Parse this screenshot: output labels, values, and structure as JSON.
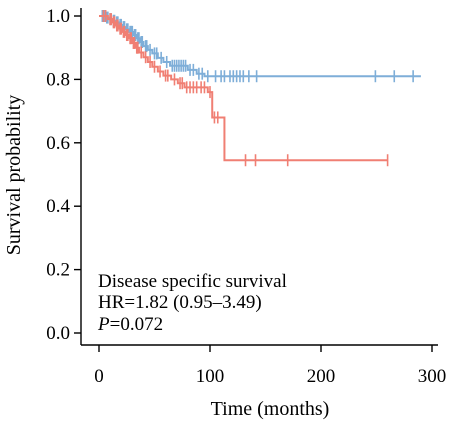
{
  "chart_data": {
    "type": "line",
    "title": "",
    "xlabel": "Time (months)",
    "ylabel": "Survival probability",
    "xlim": [
      0,
      300
    ],
    "ylim": [
      0,
      1
    ],
    "xticks": [
      0,
      100,
      200,
      300
    ],
    "xtick_labels": [
      "0",
      "100",
      "200",
      "300"
    ],
    "yticks": [
      0,
      0.2,
      0.4,
      0.6,
      0.8,
      1.0
    ],
    "ytick_labels": [
      "0.0",
      "0.2",
      "0.4",
      "0.6",
      "0.8",
      "1.0"
    ],
    "grid": false,
    "series": [
      {
        "color": "#7EAED8",
        "steps": [
          [
            0,
            1.0
          ],
          [
            6,
            0.995
          ],
          [
            9,
            0.99
          ],
          [
            12,
            0.985
          ],
          [
            15,
            0.98
          ],
          [
            18,
            0.972
          ],
          [
            21,
            0.965
          ],
          [
            24,
            0.958
          ],
          [
            27,
            0.95
          ],
          [
            31,
            0.94
          ],
          [
            34,
            0.93
          ],
          [
            37,
            0.918
          ],
          [
            40,
            0.905
          ],
          [
            44,
            0.893
          ],
          [
            48,
            0.882
          ],
          [
            53,
            0.868
          ],
          [
            58,
            0.855
          ],
          [
            64,
            0.843
          ],
          [
            80,
            0.83
          ],
          [
            88,
            0.818
          ],
          [
            95,
            0.81
          ],
          [
            290,
            0.81
          ]
        ],
        "censor": [
          [
            3,
            1.0
          ],
          [
            5,
            1.0
          ],
          [
            7,
            0.995
          ],
          [
            8,
            0.995
          ],
          [
            10,
            0.99
          ],
          [
            11,
            0.99
          ],
          [
            13,
            0.985
          ],
          [
            14,
            0.985
          ],
          [
            16,
            0.98
          ],
          [
            17,
            0.98
          ],
          [
            19,
            0.972
          ],
          [
            20,
            0.972
          ],
          [
            22,
            0.965
          ],
          [
            23,
            0.965
          ],
          [
            25,
            0.958
          ],
          [
            26,
            0.958
          ],
          [
            28,
            0.95
          ],
          [
            29,
            0.95
          ],
          [
            30,
            0.95
          ],
          [
            32,
            0.94
          ],
          [
            33,
            0.94
          ],
          [
            35,
            0.93
          ],
          [
            36,
            0.93
          ],
          [
            38,
            0.918
          ],
          [
            39,
            0.918
          ],
          [
            42,
            0.905
          ],
          [
            43,
            0.905
          ],
          [
            46,
            0.893
          ],
          [
            50,
            0.882
          ],
          [
            52,
            0.882
          ],
          [
            56,
            0.868
          ],
          [
            61,
            0.855
          ],
          [
            66,
            0.843
          ],
          [
            68,
            0.843
          ],
          [
            70,
            0.843
          ],
          [
            72,
            0.843
          ],
          [
            74,
            0.843
          ],
          [
            76,
            0.843
          ],
          [
            78,
            0.843
          ],
          [
            82,
            0.83
          ],
          [
            85,
            0.83
          ],
          [
            90,
            0.818
          ],
          [
            93,
            0.818
          ],
          [
            98,
            0.81
          ],
          [
            105,
            0.81
          ],
          [
            110,
            0.81
          ],
          [
            113,
            0.81
          ],
          [
            118,
            0.81
          ],
          [
            121,
            0.81
          ],
          [
            124,
            0.81
          ],
          [
            127,
            0.81
          ],
          [
            130,
            0.81
          ],
          [
            135,
            0.81
          ],
          [
            142,
            0.81
          ],
          [
            249,
            0.81
          ],
          [
            266,
            0.81
          ],
          [
            283,
            0.81
          ]
        ]
      },
      {
        "color": "#F07F73",
        "steps": [
          [
            0,
            1.0
          ],
          [
            8,
            0.99
          ],
          [
            12,
            0.98
          ],
          [
            15,
            0.97
          ],
          [
            18,
            0.96
          ],
          [
            21,
            0.95
          ],
          [
            24,
            0.94
          ],
          [
            27,
            0.93
          ],
          [
            30,
            0.915
          ],
          [
            33,
            0.9
          ],
          [
            36,
            0.885
          ],
          [
            40,
            0.87
          ],
          [
            44,
            0.855
          ],
          [
            48,
            0.84
          ],
          [
            53,
            0.825
          ],
          [
            58,
            0.812
          ],
          [
            65,
            0.8
          ],
          [
            71,
            0.788
          ],
          [
            77,
            0.775
          ],
          [
            98,
            0.76
          ],
          [
            102,
            0.68
          ],
          [
            113,
            0.545
          ],
          [
            260,
            0.545
          ]
        ],
        "censor": [
          [
            4,
            1.0
          ],
          [
            6,
            1.0
          ],
          [
            10,
            0.99
          ],
          [
            11,
            0.99
          ],
          [
            13,
            0.98
          ],
          [
            14,
            0.98
          ],
          [
            16,
            0.97
          ],
          [
            17,
            0.97
          ],
          [
            19,
            0.96
          ],
          [
            20,
            0.96
          ],
          [
            22,
            0.95
          ],
          [
            23,
            0.95
          ],
          [
            25,
            0.94
          ],
          [
            26,
            0.94
          ],
          [
            28,
            0.93
          ],
          [
            29,
            0.93
          ],
          [
            31,
            0.915
          ],
          [
            32,
            0.915
          ],
          [
            34,
            0.9
          ],
          [
            35,
            0.9
          ],
          [
            38,
            0.885
          ],
          [
            42,
            0.87
          ],
          [
            46,
            0.855
          ],
          [
            50,
            0.84
          ],
          [
            55,
            0.825
          ],
          [
            60,
            0.812
          ],
          [
            62,
            0.812
          ],
          [
            68,
            0.8
          ],
          [
            73,
            0.788
          ],
          [
            75,
            0.788
          ],
          [
            79,
            0.775
          ],
          [
            82,
            0.775
          ],
          [
            85,
            0.775
          ],
          [
            88,
            0.775
          ],
          [
            92,
            0.775
          ],
          [
            95,
            0.775
          ],
          [
            100,
            0.76
          ],
          [
            104,
            0.68
          ],
          [
            107,
            0.68
          ],
          [
            132,
            0.545
          ],
          [
            141,
            0.545
          ],
          [
            170,
            0.545
          ],
          [
            260,
            0.545
          ]
        ]
      }
    ],
    "annotations": [
      {
        "text": "Disease specific survival"
      },
      {
        "text": "HR=1.82 (0.95–3.49)"
      },
      {
        "p_label": "P",
        "p_value": "=0.072"
      }
    ]
  }
}
